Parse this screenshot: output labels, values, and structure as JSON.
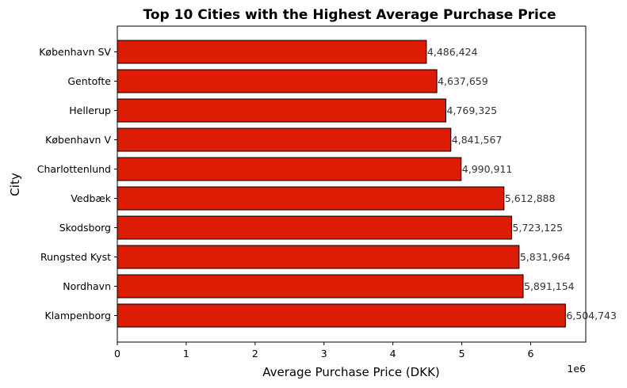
{
  "chart_data": {
    "type": "bar",
    "orientation": "horizontal",
    "title": "Top 10 Cities with the Highest Average Purchase Price",
    "xlabel": "Average Purchase Price (DKK)",
    "ylabel": "City",
    "x_scale_label": "1e6",
    "xlim": [
      0,
      6800000
    ],
    "xticks": [
      0,
      1000000,
      2000000,
      3000000,
      4000000,
      5000000,
      6000000
    ],
    "xtick_labels": [
      "0",
      "1",
      "2",
      "3",
      "4",
      "5",
      "6"
    ],
    "grid": false,
    "bar_color": "#dc1c04",
    "edge_color": "#000000",
    "categories": [
      "København SV",
      "Gentofte",
      "Hellerup",
      "København V",
      "Charlottenlund",
      "Vedbæk",
      "Skodsborg",
      "Rungsted Kyst",
      "Nordhavn",
      "Klampenborg"
    ],
    "values": [
      4486424,
      4637659,
      4769325,
      4841567,
      4990911,
      5612888,
      5723125,
      5831964,
      5891154,
      6504743
    ],
    "value_labels": [
      "4,486,424",
      "4,637,659",
      "4,769,325",
      "4,841,567",
      "4,990,911",
      "5,612,888",
      "5,723,125",
      "5,831,964",
      "5,891,154",
      "6,504,743"
    ]
  }
}
